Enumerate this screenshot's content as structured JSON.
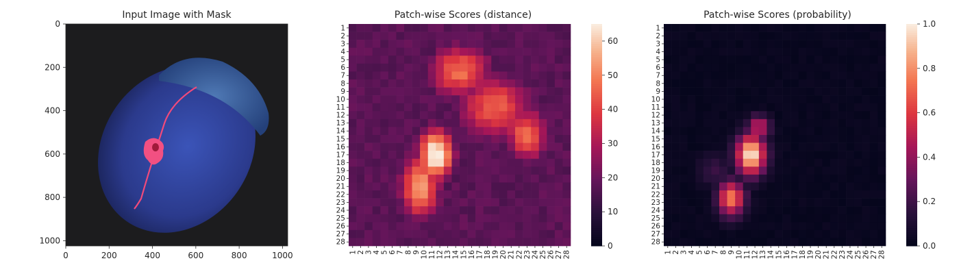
{
  "chart_data": [
    {
      "type": "image",
      "title": "Input Image with Mask",
      "x_ticks": [
        "0",
        "200",
        "400",
        "600",
        "800",
        "1000"
      ],
      "y_ticks": [
        "0",
        "200",
        "400",
        "600",
        "800",
        "1000"
      ],
      "xlim": [
        0,
        1024
      ],
      "ylim": [
        1024,
        0
      ],
      "image_description_colors": {
        "background": "#1c1c1e",
        "acorn": "#2e3f92",
        "cap": "#3a5f9c",
        "mask": "#f24a7b"
      }
    },
    {
      "type": "heatmap",
      "title": "Patch-wise Scores (distance)",
      "rows": 28,
      "cols": 28,
      "x_ticks": [
        "1",
        "2",
        "3",
        "4",
        "5",
        "6",
        "7",
        "8",
        "9",
        "10",
        "11",
        "12",
        "13",
        "14",
        "15",
        "16",
        "17",
        "18",
        "19",
        "20",
        "21",
        "22",
        "23",
        "24",
        "25",
        "26",
        "27",
        "28"
      ],
      "y_ticks": [
        "1",
        "2",
        "3",
        "4",
        "5",
        "6",
        "7",
        "8",
        "9",
        "10",
        "11",
        "12",
        "13",
        "14",
        "15",
        "16",
        "17",
        "18",
        "19",
        "20",
        "21",
        "22",
        "23",
        "24",
        "25",
        "26",
        "27",
        "28"
      ],
      "colorbar": {
        "min": 0,
        "max": 65,
        "ticks": [
          "0",
          "10",
          "20",
          "30",
          "40",
          "50",
          "60"
        ]
      },
      "colormap": "rocket",
      "hotspots": [
        {
          "row": 17,
          "col": 11.5,
          "peak": 64,
          "sx": 1.6,
          "sy": 2.4
        },
        {
          "row": 21,
          "col": 9.5,
          "peak": 50,
          "sx": 1.8,
          "sy": 3
        },
        {
          "row": 6.5,
          "col": 14.5,
          "peak": 42,
          "sx": 3,
          "sy": 2.5
        },
        {
          "row": 11,
          "col": 19,
          "peak": 40,
          "sx": 3.5,
          "sy": 3
        },
        {
          "row": 14.5,
          "col": 23,
          "peak": 42,
          "sx": 2,
          "sy": 2.5
        }
      ],
      "base": 18
    },
    {
      "type": "heatmap",
      "title": "Patch-wise Scores (probability)",
      "rows": 28,
      "cols": 28,
      "x_ticks": [
        "1",
        "2",
        "3",
        "4",
        "5",
        "6",
        "7",
        "8",
        "9",
        "10",
        "11",
        "12",
        "13",
        "14",
        "15",
        "16",
        "17",
        "18",
        "19",
        "20",
        "21",
        "22",
        "23",
        "24",
        "25",
        "26",
        "27",
        "28"
      ],
      "y_ticks": [
        "1",
        "2",
        "3",
        "4",
        "5",
        "6",
        "7",
        "8",
        "9",
        "10",
        "11",
        "12",
        "13",
        "14",
        "15",
        "16",
        "17",
        "18",
        "19",
        "20",
        "21",
        "22",
        "23",
        "24",
        "25",
        "26",
        "27",
        "28"
      ],
      "colorbar": {
        "min": 0,
        "max": 1,
        "ticks": [
          "0.0",
          "0.2",
          "0.4",
          "0.6",
          "0.8",
          "1.0"
        ]
      },
      "colormap": "rocket",
      "hotspots": [
        {
          "row": 17,
          "col": 11.5,
          "peak": 1.0,
          "sx": 1.3,
          "sy": 1.8
        },
        {
          "row": 22.5,
          "col": 9,
          "peak": 0.75,
          "sx": 1.2,
          "sy": 1.6
        },
        {
          "row": 13.5,
          "col": 12.5,
          "peak": 0.55,
          "sx": 1,
          "sy": 1
        },
        {
          "row": 19,
          "col": 7,
          "peak": 0.18,
          "sx": 1.5,
          "sy": 1.5
        }
      ],
      "base": 0.01
    }
  ]
}
